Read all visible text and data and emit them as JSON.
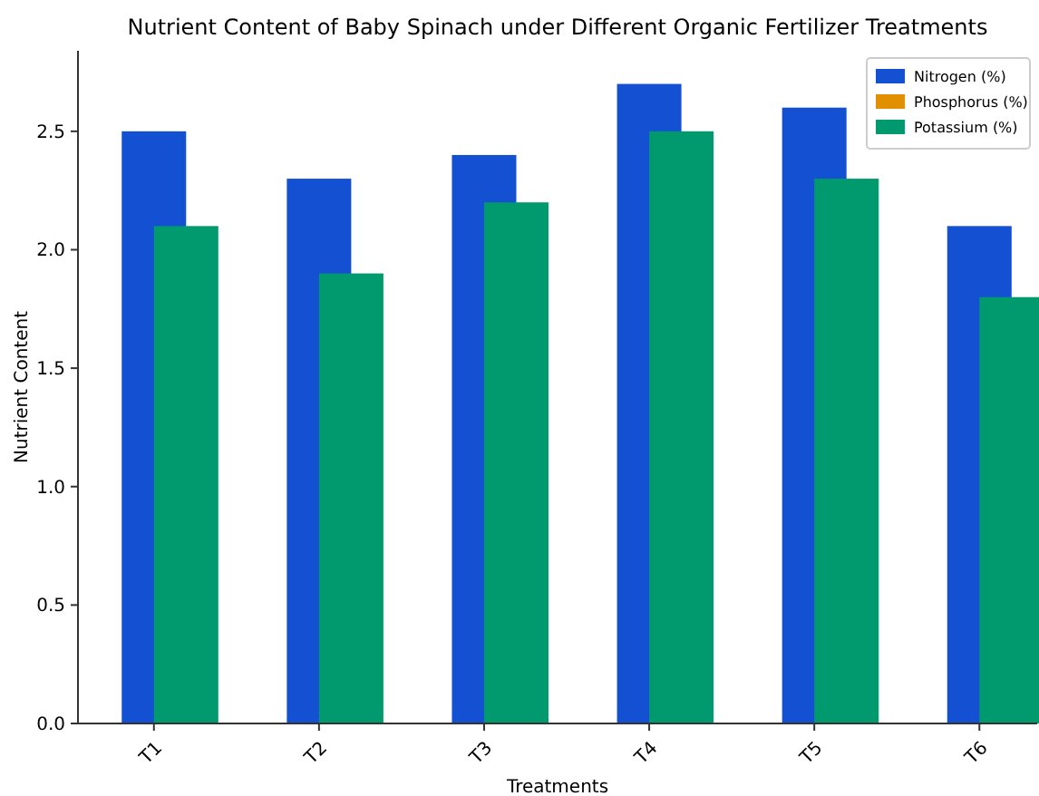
{
  "chart_data": {
    "type": "bar",
    "title": "Nutrient Content of Baby Spinach under Different Organic Fertilizer Treatments",
    "xlabel": "Treatments",
    "ylabel": "Nutrient Content",
    "categories": [
      "T1",
      "T2",
      "T3",
      "T4",
      "T5",
      "T6"
    ],
    "series": [
      {
        "name": "Nitrogen (%)",
        "color": "#1450d2",
        "values": [
          2.5,
          2.3,
          2.4,
          2.7,
          2.6,
          2.1
        ]
      },
      {
        "name": "Phosphorus (%)",
        "color": "#e09000",
        "values": [
          null,
          null,
          null,
          null,
          null,
          null
        ]
      },
      {
        "name": "Potassium (%)",
        "color": "#009a6e",
        "values": [
          2.1,
          1.9,
          2.2,
          2.5,
          2.3,
          1.8
        ]
      }
    ],
    "ylim": [
      0,
      2.84
    ],
    "yticks": [
      {
        "value": 0,
        "label": "0.0"
      },
      {
        "value": 0.5,
        "label": "0.5"
      },
      {
        "value": 1,
        "label": "1.0"
      },
      {
        "value": 1.5,
        "label": "1.5"
      },
      {
        "value": 2,
        "label": "2.0"
      },
      {
        "value": 2.5,
        "label": "2.5"
      }
    ],
    "grid": false,
    "legend": "top right"
  }
}
